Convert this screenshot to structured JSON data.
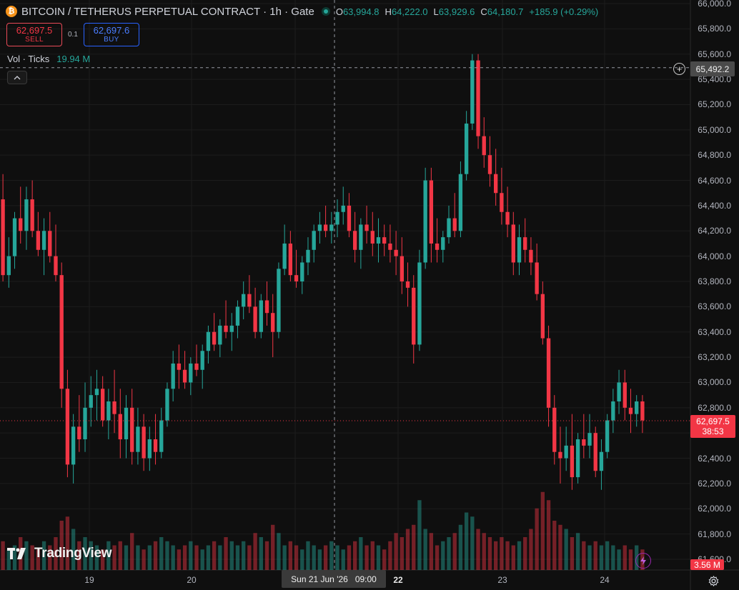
{
  "symbol": {
    "coin_icon": "bitcoin-icon",
    "coin_glyph": "₿",
    "title": "BITCOIN / TETHERUS PERPETUAL CONTRACT · 1h · Gate"
  },
  "ohlc": {
    "open_label": "O",
    "open": "63,994.8",
    "high_label": "H",
    "high": "64,222.0",
    "low_label": "L",
    "low": "63,929.6",
    "close_label": "C",
    "close": "64,180.7",
    "change": "+185.9 (+0.29%)"
  },
  "trade": {
    "sell_price": "62,697.5",
    "sell_label": "SELL",
    "spread": "0.1",
    "buy_price": "62,697.6",
    "buy_label": "BUY"
  },
  "volume_legend": {
    "label": "Vol · Ticks",
    "value": "19.94 M"
  },
  "y_axis": {
    "ticks": [
      "66,000.0",
      "65,800.0",
      "65,600.0",
      "65,400.0",
      "65,200.0",
      "65,000.0",
      "64,800.0",
      "64,600.0",
      "64,400.0",
      "64,200.0",
      "64,000.0",
      "63,800.0",
      "63,600.0",
      "63,400.0",
      "63,200.0",
      "63,000.0",
      "62,800.0",
      "62,600.0",
      "62,400.0",
      "62,200.0",
      "62,000.0",
      "61,800.0",
      "61,600.0"
    ]
  },
  "x_axis": {
    "ticks": [
      {
        "label": "19",
        "bold": false
      },
      {
        "label": "20",
        "bold": false
      },
      {
        "label": "22",
        "bold": true
      },
      {
        "label": "23",
        "bold": false
      },
      {
        "label": "24",
        "bold": false
      }
    ]
  },
  "crosshair": {
    "price_label": "65,492.2",
    "price": 65492.2,
    "date_label": "Sun 21 Jun '26",
    "time_label": "09:00"
  },
  "last_price": {
    "price": "62,697.5",
    "countdown": "38:53",
    "value": 62697.5
  },
  "volume_last": "3.56 M",
  "branding": {
    "logo_text": "TradingView"
  },
  "colors": {
    "up": "#26a69a",
    "down": "#f23645",
    "background": "#0f0f0f",
    "grid": "#1c1c1c"
  },
  "icons": {
    "collapse": "chevron-up-icon",
    "add": "plus-circle-icon",
    "flash": "lightning-icon",
    "settings": "gear-icon",
    "live": "live-dot-icon"
  },
  "chart_data": {
    "type": "candlestick",
    "interval": "1h",
    "ylim": [
      61600,
      66000
    ],
    "price_scale_min": 61600,
    "price_scale_max": 66000,
    "candles": [
      [
        64450,
        64650,
        63800,
        63850
      ],
      [
        63850,
        64150,
        63750,
        64000
      ],
      [
        64000,
        64350,
        63900,
        64300
      ],
      [
        64300,
        64550,
        64100,
        64200
      ],
      [
        64200,
        64550,
        64050,
        64450
      ],
      [
        64450,
        64600,
        64150,
        64200
      ],
      [
        64200,
        64350,
        64000,
        64050
      ],
      [
        64050,
        64300,
        63850,
        64200
      ],
      [
        64200,
        64350,
        63950,
        64000
      ],
      [
        64000,
        64250,
        63800,
        63850
      ],
      [
        63850,
        63950,
        62800,
        62950
      ],
      [
        62950,
        63100,
        62250,
        62350
      ],
      [
        62350,
        62750,
        62200,
        62650
      ],
      [
        62650,
        62900,
        62450,
        62550
      ],
      [
        62550,
        63000,
        62450,
        62800
      ],
      [
        62800,
        63050,
        62650,
        62900
      ],
      [
        62900,
        63100,
        62700,
        62950
      ],
      [
        62950,
        63050,
        62650,
        62700
      ],
      [
        62700,
        62950,
        62550,
        62850
      ],
      [
        62850,
        63100,
        62600,
        62750
      ],
      [
        62750,
        62950,
        62400,
        62550
      ],
      [
        62550,
        62900,
        62400,
        62800
      ],
      [
        62800,
        62950,
        62350,
        62450
      ],
      [
        62450,
        62800,
        62350,
        62650
      ],
      [
        62650,
        62750,
        62300,
        62400
      ],
      [
        62400,
        62650,
        62300,
        62550
      ],
      [
        62550,
        62750,
        62350,
        62450
      ],
      [
        62450,
        62800,
        62400,
        62700
      ],
      [
        62700,
        63000,
        62650,
        62950
      ],
      [
        62950,
        63250,
        62850,
        63150
      ],
      [
        63150,
        63300,
        62950,
        63100
      ],
      [
        63100,
        63250,
        62950,
        63000
      ],
      [
        63000,
        63200,
        62900,
        63150
      ],
      [
        63150,
        63300,
        63050,
        63100
      ],
      [
        63100,
        63300,
        62950,
        63250
      ],
      [
        63250,
        63450,
        63150,
        63400
      ],
      [
        63400,
        63550,
        63250,
        63300
      ],
      [
        63300,
        63500,
        63200,
        63450
      ],
      [
        63450,
        63650,
        63350,
        63400
      ],
      [
        63400,
        63550,
        63250,
        63450
      ],
      [
        63450,
        63650,
        63350,
        63600
      ],
      [
        63600,
        63800,
        63500,
        63700
      ],
      [
        63700,
        63850,
        63550,
        63600
      ],
      [
        63600,
        63750,
        63350,
        63400
      ],
      [
        63400,
        63700,
        63350,
        63650
      ],
      [
        63650,
        63800,
        63450,
        63550
      ],
      [
        63550,
        63700,
        63200,
        63400
      ],
      [
        63400,
        63950,
        63350,
        63900
      ],
      [
        63900,
        64250,
        63850,
        64100
      ],
      [
        64100,
        64200,
        63800,
        63850
      ],
      [
        63850,
        64050,
        63750,
        63800
      ],
      [
        63800,
        64000,
        63700,
        63950
      ],
      [
        63950,
        64150,
        63850,
        64050
      ],
      [
        64050,
        64250,
        63950,
        64200
      ],
      [
        64200,
        64350,
        64100,
        64250
      ],
      [
        64250,
        64400,
        64150,
        64200
      ],
      [
        64200,
        64350,
        64100,
        64250
      ],
      [
        64250,
        64450,
        64150,
        64350
      ],
      [
        64350,
        64550,
        64250,
        64400
      ],
      [
        64400,
        64500,
        64150,
        64200
      ],
      [
        64200,
        64350,
        63950,
        64050
      ],
      [
        64050,
        64300,
        63900,
        64250
      ],
      [
        64250,
        64400,
        64100,
        64200
      ],
      [
        64200,
        64350,
        64000,
        64100
      ],
      [
        64100,
        64300,
        63950,
        64150
      ],
      [
        64150,
        64250,
        64000,
        64100
      ],
      [
        64100,
        64250,
        63950,
        64050
      ],
      [
        64050,
        64200,
        63850,
        64000
      ],
      [
        64000,
        64150,
        63700,
        63800
      ],
      [
        63800,
        63950,
        63600,
        63750
      ],
      [
        63750,
        63850,
        63150,
        63300
      ],
      [
        63300,
        64050,
        63250,
        63950
      ],
      [
        63950,
        64700,
        63900,
        64600
      ],
      [
        64600,
        64700,
        63950,
        64100
      ],
      [
        64100,
        64300,
        63950,
        64050
      ],
      [
        64050,
        64200,
        63950,
        64150
      ],
      [
        64150,
        64400,
        64100,
        64300
      ],
      [
        64300,
        64500,
        64150,
        64200
      ],
      [
        64200,
        64750,
        64150,
        64650
      ],
      [
        64650,
        65150,
        64600,
        65050
      ],
      [
        65050,
        65600,
        65000,
        65550
      ],
      [
        65550,
        65600,
        64850,
        64950
      ],
      [
        64950,
        65100,
        64700,
        64800
      ],
      [
        64800,
        64950,
        64550,
        64650
      ],
      [
        64650,
        64850,
        64400,
        64500
      ],
      [
        64500,
        64700,
        64250,
        64350
      ],
      [
        64350,
        64550,
        64150,
        64250
      ],
      [
        64250,
        64350,
        63850,
        63950
      ],
      [
        63950,
        64250,
        63850,
        64150
      ],
      [
        64150,
        64300,
        63950,
        64050
      ],
      [
        64050,
        64150,
        63850,
        63950
      ],
      [
        63950,
        64100,
        63650,
        63700
      ],
      [
        63700,
        63800,
        63300,
        63350
      ],
      [
        63350,
        63450,
        62650,
        62800
      ],
      [
        62800,
        62900,
        62350,
        62450
      ],
      [
        62450,
        62650,
        62200,
        62400
      ],
      [
        62400,
        62650,
        62300,
        62500
      ],
      [
        62500,
        62750,
        62150,
        62250
      ],
      [
        62250,
        62600,
        62200,
        62550
      ],
      [
        62550,
        62750,
        62400,
        62500
      ],
      [
        62500,
        62750,
        62400,
        62600
      ],
      [
        62600,
        62650,
        62250,
        62300
      ],
      [
        62300,
        62550,
        62150,
        62450
      ],
      [
        62450,
        62750,
        62400,
        62700
      ],
      [
        62700,
        62950,
        62600,
        62850
      ],
      [
        62850,
        63100,
        62750,
        63000
      ],
      [
        63000,
        63100,
        62700,
        62800
      ],
      [
        62800,
        62950,
        62600,
        62750
      ],
      [
        62750,
        62900,
        62650,
        62850
      ],
      [
        62850,
        62900,
        62600,
        62700
      ]
    ],
    "volumes": [
      0.35,
      0.25,
      0.3,
      0.4,
      0.35,
      0.3,
      0.25,
      0.35,
      0.3,
      0.4,
      0.6,
      0.65,
      0.5,
      0.35,
      0.4,
      0.35,
      0.3,
      0.25,
      0.35,
      0.3,
      0.35,
      0.3,
      0.45,
      0.3,
      0.25,
      0.3,
      0.35,
      0.4,
      0.35,
      0.3,
      0.25,
      0.3,
      0.35,
      0.3,
      0.25,
      0.3,
      0.35,
      0.3,
      0.4,
      0.35,
      0.3,
      0.35,
      0.3,
      0.45,
      0.4,
      0.35,
      0.55,
      0.45,
      0.3,
      0.35,
      0.3,
      0.25,
      0.35,
      0.3,
      0.25,
      0.3,
      0.35,
      0.3,
      0.25,
      0.3,
      0.35,
      0.4,
      0.3,
      0.35,
      0.3,
      0.25,
      0.35,
      0.45,
      0.4,
      0.5,
      0.55,
      0.85,
      0.5,
      0.45,
      0.3,
      0.35,
      0.4,
      0.45,
      0.55,
      0.7,
      0.65,
      0.5,
      0.45,
      0.4,
      0.35,
      0.4,
      0.35,
      0.3,
      0.35,
      0.4,
      0.5,
      0.75,
      0.95,
      0.85,
      0.6,
      0.55,
      0.5,
      0.4,
      0.45,
      0.35,
      0.3,
      0.35,
      0.3,
      0.35,
      0.3,
      0.25,
      0.3,
      0.25,
      0.3,
      0.25
    ]
  }
}
